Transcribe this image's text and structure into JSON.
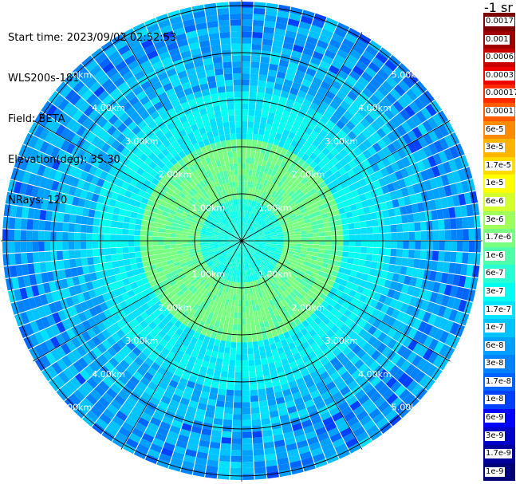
{
  "header": {
    "start_time": "Start time: 2023/09/02 02:52:53",
    "instrument": "WLS200s-181",
    "field": "Field: BETA",
    "elevation": "Elevation(deg): 35.30",
    "nrays": "NRays: 120"
  },
  "units_label": "-1 sr",
  "range_rings": [
    "1.00km",
    "2.00km",
    "3.00km",
    "4.00km",
    "5.00km"
  ],
  "colorbar": [
    {
      "label": "0.0017",
      "color": "#7f0000"
    },
    {
      "label": "0.001",
      "color": "#a00000"
    },
    {
      "label": "0.0006",
      "color": "#c80000"
    },
    {
      "label": "0.0003",
      "color": "#f00000"
    },
    {
      "label": "0.00017",
      "color": "#ff2a00"
    },
    {
      "label": "0.0001",
      "color": "#ff5a00"
    },
    {
      "label": "6e-5",
      "color": "#ff8c00"
    },
    {
      "label": "3e-5",
      "color": "#ffb400"
    },
    {
      "label": "1.7e-5",
      "color": "#ffdc00"
    },
    {
      "label": "1e-5",
      "color": "#ffff00"
    },
    {
      "label": "6e-6",
      "color": "#d2ff2d"
    },
    {
      "label": "3e-6",
      "color": "#a0ff5a"
    },
    {
      "label": "1.7e-6",
      "color": "#78ff82"
    },
    {
      "label": "1e-6",
      "color": "#50ffaa"
    },
    {
      "label": "6e-7",
      "color": "#28ffd2"
    },
    {
      "label": "3e-7",
      "color": "#00fff0"
    },
    {
      "label": "1.7e-7",
      "color": "#00e1ff"
    },
    {
      "label": "1e-7",
      "color": "#00c3ff"
    },
    {
      "label": "6e-8",
      "color": "#00a0ff"
    },
    {
      "label": "3e-8",
      "color": "#0082ff"
    },
    {
      "label": "1.7e-8",
      "color": "#0064ff"
    },
    {
      "label": "1e-8",
      "color": "#0041ff"
    },
    {
      "label": "6e-9",
      "color": "#0000ff"
    },
    {
      "label": "3e-9",
      "color": "#0000c8"
    },
    {
      "label": "1.7e-9",
      "color": "#00009b"
    },
    {
      "label": "1e-9",
      "color": "#000078"
    }
  ],
  "colors": {
    "grid": "#000000",
    "ray_gap": "#ffffff",
    "ring_label": "#ffffff"
  }
}
